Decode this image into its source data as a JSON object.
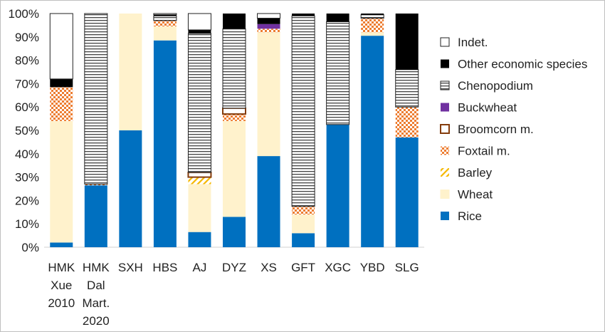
{
  "chart_data": {
    "type": "bar",
    "stacked": true,
    "percent": true,
    "categories": [
      [
        "HMK",
        "Xue",
        "2010"
      ],
      [
        "HMK",
        "Dal",
        "Mart.",
        "2020"
      ],
      [
        "SXH"
      ],
      [
        "HBS"
      ],
      [
        "AJ"
      ],
      [
        "DYZ"
      ],
      [
        "XS"
      ],
      [
        "GFT"
      ],
      [
        "XGC"
      ],
      [
        "YBD"
      ],
      [
        "SLG"
      ]
    ],
    "ylim": [
      0,
      100
    ],
    "yticks": [
      "0%",
      "10%",
      "20%",
      "30%",
      "40%",
      "50%",
      "60%",
      "70%",
      "80%",
      "90%",
      "100%"
    ],
    "legend_position": "right",
    "series": [
      {
        "name": "Rice",
        "pattern": "solid",
        "color": "#0070C0",
        "values": [
          2,
          26.5,
          50,
          88.5,
          6.5,
          13,
          39,
          6,
          52.5,
          90.5,
          47
        ]
      },
      {
        "name": "Wheat",
        "pattern": "solid",
        "color": "#FFF2CC",
        "values": [
          52,
          0,
          50,
          6,
          20.5,
          41,
          53,
          8,
          0,
          1.5,
          0
        ]
      },
      {
        "name": "Barley",
        "pattern": "diagonal",
        "color": "#F5B800",
        "values": [
          0,
          0,
          0,
          0,
          3,
          0,
          0,
          0,
          0,
          0,
          0
        ]
      },
      {
        "name": "Foxtail m.",
        "pattern": "checker",
        "color": "#ED7D31",
        "values": [
          14.5,
          0.5,
          0,
          2.5,
          0,
          3,
          1.5,
          3.5,
          0,
          6,
          13
        ]
      },
      {
        "name": "Broomcorn m.",
        "pattern": "outline",
        "color": "#843C0C",
        "values": [
          0,
          0,
          0,
          0,
          2,
          2.5,
          0,
          0,
          0,
          0,
          0
        ]
      },
      {
        "name": "Buckwheat",
        "pattern": "solid",
        "color": "#7030A0",
        "values": [
          0,
          0,
          0,
          0,
          0,
          0,
          2,
          0,
          0,
          0,
          0
        ]
      },
      {
        "name": "Chenopodium",
        "pattern": "hlines",
        "color": "#444444",
        "values": [
          0,
          73,
          0,
          2,
          59.5,
          34,
          0,
          81.5,
          44,
          1.5,
          16
        ]
      },
      {
        "name": "Other economic species",
        "pattern": "solid",
        "color": "#000000",
        "values": [
          3.5,
          0,
          0,
          0.5,
          1.5,
          6.5,
          2.5,
          1,
          3.5,
          0.5,
          24
        ]
      },
      {
        "name": "Indet.",
        "pattern": "empty",
        "color": "#ffffff",
        "values": [
          28,
          0,
          0,
          0.5,
          7,
          0,
          2,
          0,
          0,
          0,
          0
        ]
      }
    ]
  }
}
